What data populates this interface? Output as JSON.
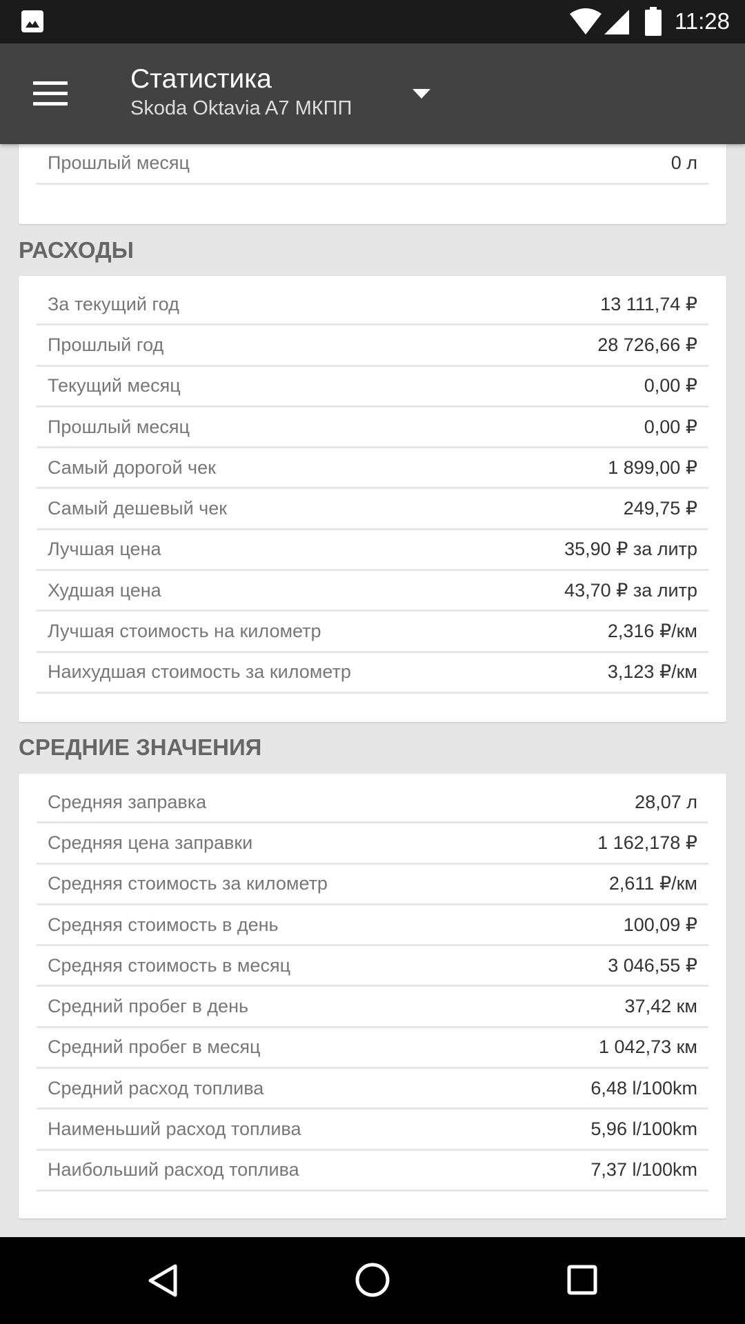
{
  "status_bar": {
    "time": "11:28"
  },
  "app_bar": {
    "title": "Статистика",
    "subtitle": "Skoda Oktavia A7 МКПП"
  },
  "top_card": {
    "rows": [
      {
        "label": "Прошлый месяц",
        "value": "0 л"
      }
    ]
  },
  "expenses": {
    "header": "РАСХОДЫ",
    "rows": [
      {
        "label": "За текущий год",
        "value": "13 111,74 ₽"
      },
      {
        "label": "Прошлый год",
        "value": "28 726,66 ₽"
      },
      {
        "label": "Текущий месяц",
        "value": "0,00 ₽"
      },
      {
        "label": "Прошлый месяц",
        "value": "0,00 ₽"
      },
      {
        "label": "Самый дорогой чек",
        "value": "1 899,00 ₽"
      },
      {
        "label": "Самый дешевый чек",
        "value": "249,75 ₽"
      },
      {
        "label": "Лучшая цена",
        "value": "35,90 ₽ за литр"
      },
      {
        "label": "Худшая цена",
        "value": "43,70 ₽ за литр"
      },
      {
        "label": "Лучшая стоимость на километр",
        "value": "2,316 ₽/км"
      },
      {
        "label": "Наихудшая стоимость за километр",
        "value": "3,123 ₽/км"
      }
    ]
  },
  "averages": {
    "header": "СРЕДНИЕ ЗНАЧЕНИЯ",
    "rows": [
      {
        "label": "Средняя заправка",
        "value": "28,07 л"
      },
      {
        "label": "Средняя цена заправки",
        "value": "1 162,178 ₽"
      },
      {
        "label": "Средняя стоимость за километр",
        "value": "2,611 ₽/км"
      },
      {
        "label": "Средняя стоимость в день",
        "value": "100,09 ₽"
      },
      {
        "label": "Средняя стоимость в месяц",
        "value": "3 046,55 ₽"
      },
      {
        "label": "Средний пробег в день",
        "value": "37,42 км"
      },
      {
        "label": "Средний пробег в месяц",
        "value": "1 042,73 км"
      },
      {
        "label": "Средний расход топлива",
        "value": "6,48 l/100km"
      },
      {
        "label": "Наименьший расход топлива",
        "value": "5,96 l/100km"
      },
      {
        "label": "Наибольший расход топлива",
        "value": "7,37 l/100km"
      }
    ]
  }
}
